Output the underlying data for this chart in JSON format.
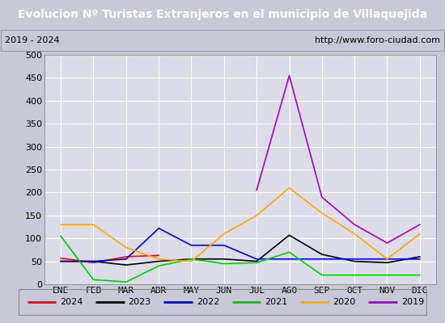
{
  "title": "Evolucion Nº Turistas Extranjeros en el municipio de Villaquejida",
  "subtitle_left": "2019 - 2024",
  "subtitle_right": "http://www.foro-ciudad.com",
  "title_bg_color": "#4472c4",
  "title_text_color": "#ffffff",
  "subtitle_bg_color": "#ffffff",
  "subtitle_text_color": "#000000",
  "plot_bg_color": "#dcdce8",
  "fig_bg_color": "#c8c8d8",
  "months": [
    "ENE",
    "FEB",
    "MAR",
    "ABR",
    "MAY",
    "JUN",
    "JUL",
    "AGO",
    "SEP",
    "OCT",
    "NOV",
    "DIC"
  ],
  "ylim": [
    0,
    500
  ],
  "yticks": [
    0,
    50,
    100,
    150,
    200,
    250,
    300,
    350,
    400,
    450,
    500
  ],
  "series": {
    "2024": {
      "color": "#ff0000",
      "data": [
        57,
        47,
        60,
        63,
        null,
        null,
        null,
        null,
        null,
        null,
        null,
        null
      ]
    },
    "2023": {
      "color": "#000000",
      "data": [
        50,
        50,
        42,
        50,
        55,
        55,
        50,
        107,
        65,
        50,
        47,
        60
      ]
    },
    "2022": {
      "color": "#0000ff",
      "data": [
        50,
        50,
        55,
        122,
        85,
        85,
        55,
        55,
        55,
        55,
        55,
        55
      ]
    },
    "2021": {
      "color": "#00cc00",
      "data": [
        105,
        10,
        5,
        40,
        55,
        45,
        47,
        70,
        20,
        20,
        20,
        20
      ]
    },
    "2020": {
      "color": "#ffa500",
      "data": [
        130,
        130,
        80,
        55,
        50,
        110,
        150,
        210,
        155,
        110,
        55,
        110
      ]
    },
    "2019": {
      "color": "#aa00cc",
      "data": [
        null,
        null,
        null,
        null,
        null,
        null,
        205,
        455,
        190,
        130,
        90,
        130
      ]
    }
  },
  "legend_order": [
    "2024",
    "2023",
    "2022",
    "2021",
    "2020",
    "2019"
  ],
  "grid_color": "#ffffff",
  "tick_fontsize": 8,
  "legend_fontsize": 8,
  "title_fontsize": 10,
  "subtitle_fontsize": 8
}
